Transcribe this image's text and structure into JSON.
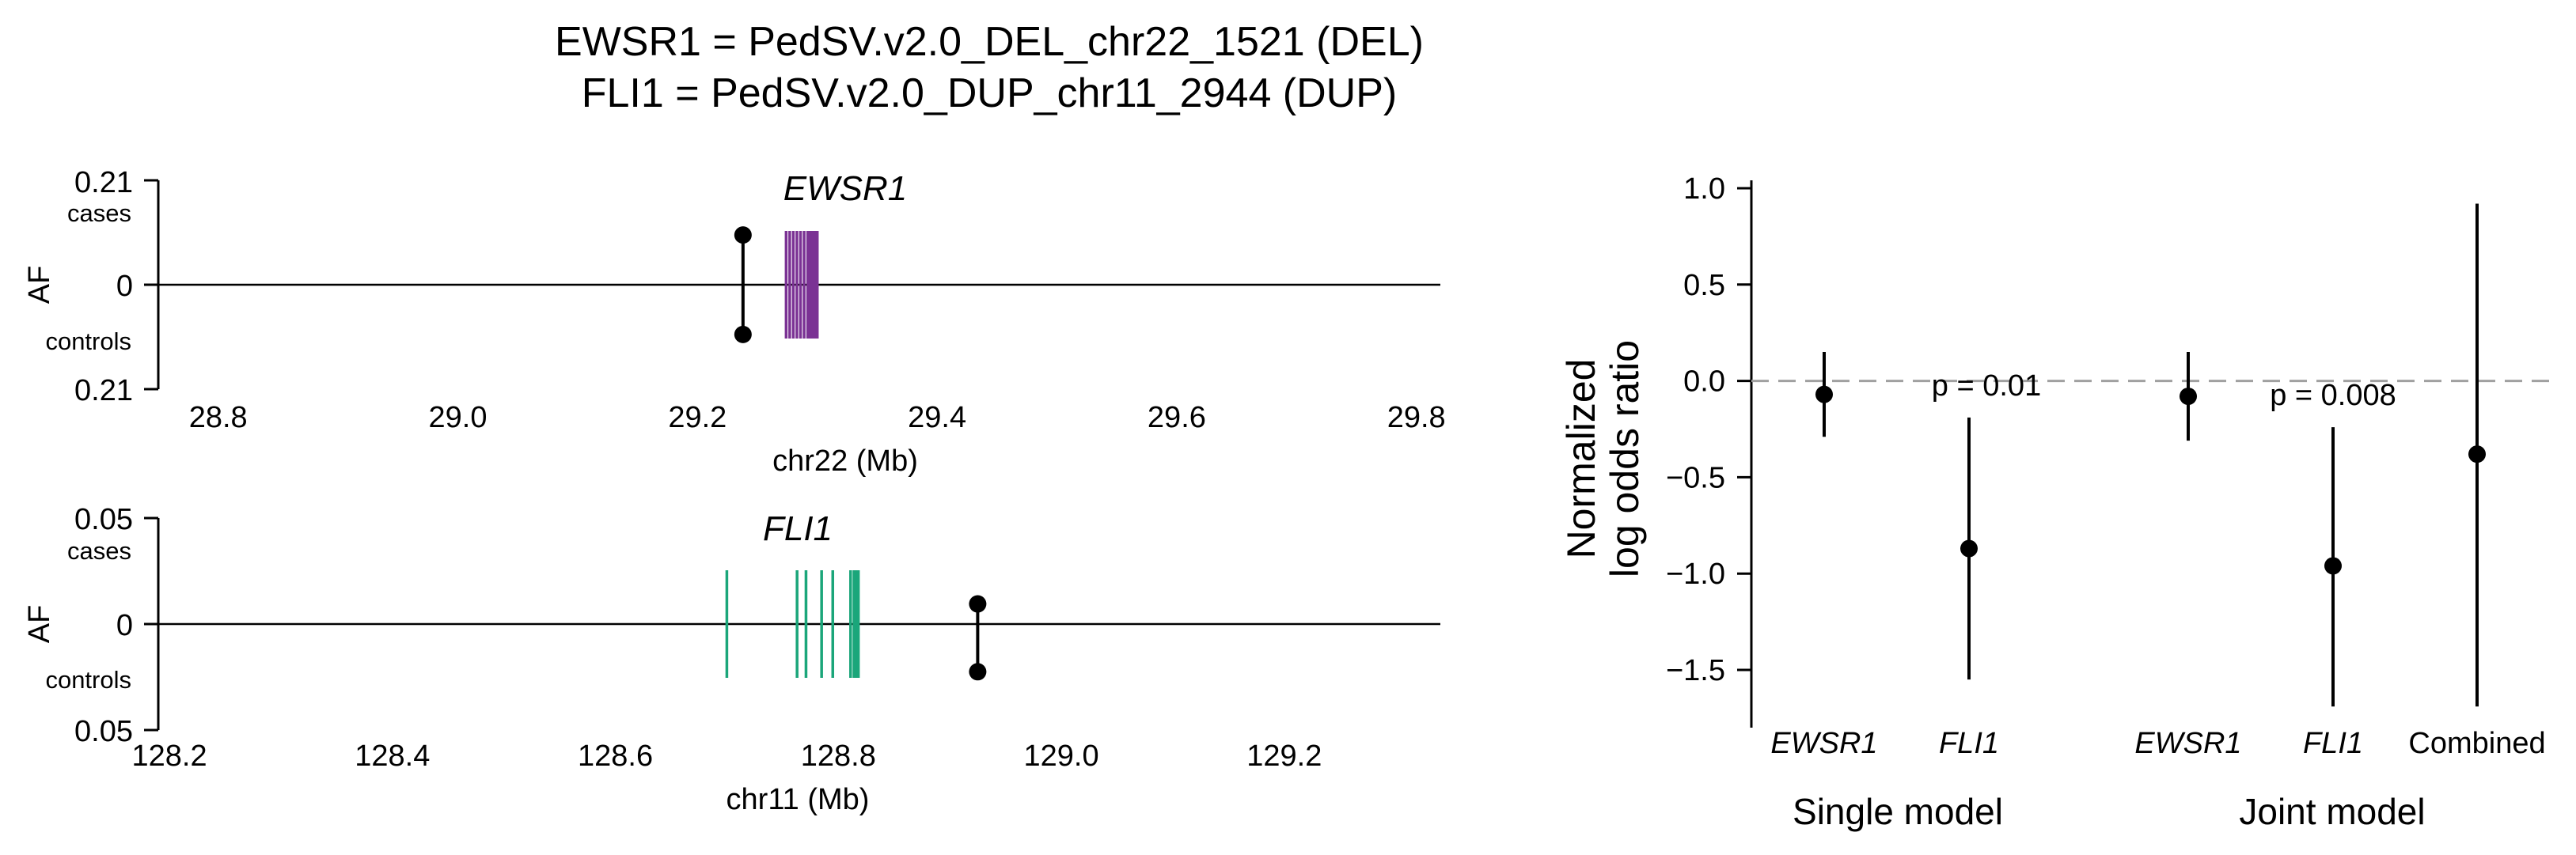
{
  "title_lines": [
    "EWSR1 = PedSV.v2.0_DEL_chr22_1521 (DEL)",
    "FLI1 = PedSV.v2.0_DUP_chr11_2944 (DUP)"
  ],
  "colors": {
    "ewsr1": "#7b3294",
    "fli1": "#1ba67a",
    "point": "#000000",
    "refline": "#a0a0a0"
  },
  "chart_data": [
    {
      "type": "locus",
      "gene": "EWSR1",
      "ylabel": "AF",
      "y_top_label": "0.21",
      "y_mid_label": "0",
      "y_bottom_label": "0.21",
      "cases_label": "cases",
      "controls_label": "controls",
      "xlabel": "chr22 (Mb)",
      "xlim": [
        28.75,
        29.82
      ],
      "xticks": [
        "28.8",
        "29.0",
        "29.2",
        "29.4",
        "29.6",
        "29.8"
      ],
      "af_max": 0.21,
      "sv": {
        "pos": 29.238,
        "case_af": 0.1,
        "control_af": 0.1
      },
      "exons": [
        29.274,
        29.277,
        29.28,
        29.283,
        29.286,
        29.289,
        29.292,
        29.294,
        29.296,
        29.298,
        29.3
      ]
    },
    {
      "type": "locus",
      "gene": "FLI1",
      "ylabel": "AF",
      "y_top_label": "0.05",
      "y_mid_label": "0",
      "y_bottom_label": "0.05",
      "cases_label": "cases",
      "controls_label": "controls",
      "xlabel": "chr11 (Mb)",
      "xlim": [
        128.19,
        129.34
      ],
      "xticks": [
        "128.2",
        "128.4",
        "128.6",
        "128.8",
        "129.0",
        "129.2"
      ],
      "af_max": 0.05,
      "sv": {
        "pos": 128.925,
        "case_af": 0.0095,
        "control_af": 0.0225
      },
      "exons": [
        128.7,
        128.763,
        128.771,
        128.785,
        128.795,
        128.811,
        128.814,
        128.816,
        128.818
      ]
    },
    {
      "type": "scatter",
      "ylabel_lines": [
        "Normalized",
        "log odds ratio"
      ],
      "ylim": [
        -1.82,
        1.05
      ],
      "yticks": [
        "1.0",
        "0.5",
        "0.0",
        "−0.5",
        "−1.0",
        "−1.5"
      ],
      "reference_line": 0.0,
      "groups": [
        "Single model",
        "Joint model"
      ],
      "points": [
        {
          "label": "EWSR1",
          "italic": true,
          "group": "Single model",
          "y": -0.07,
          "lo": -0.29,
          "hi": 0.15
        },
        {
          "label": "FLI1",
          "italic": true,
          "group": "Single model",
          "y": -0.87,
          "lo": -1.55,
          "hi": -0.19
        },
        {
          "label": "EWSR1",
          "italic": true,
          "group": "Joint model",
          "y": -0.08,
          "lo": -0.31,
          "hi": 0.15
        },
        {
          "label": "FLI1",
          "italic": true,
          "group": "Joint model",
          "y": -0.96,
          "lo": -1.69,
          "hi": -0.24
        },
        {
          "label": "Combined",
          "italic": false,
          "group": "Joint model",
          "y": -0.38,
          "lo": -1.69,
          "hi": 0.92
        }
      ],
      "annotations": [
        "p = 0.01",
        "p = 0.008"
      ]
    }
  ]
}
